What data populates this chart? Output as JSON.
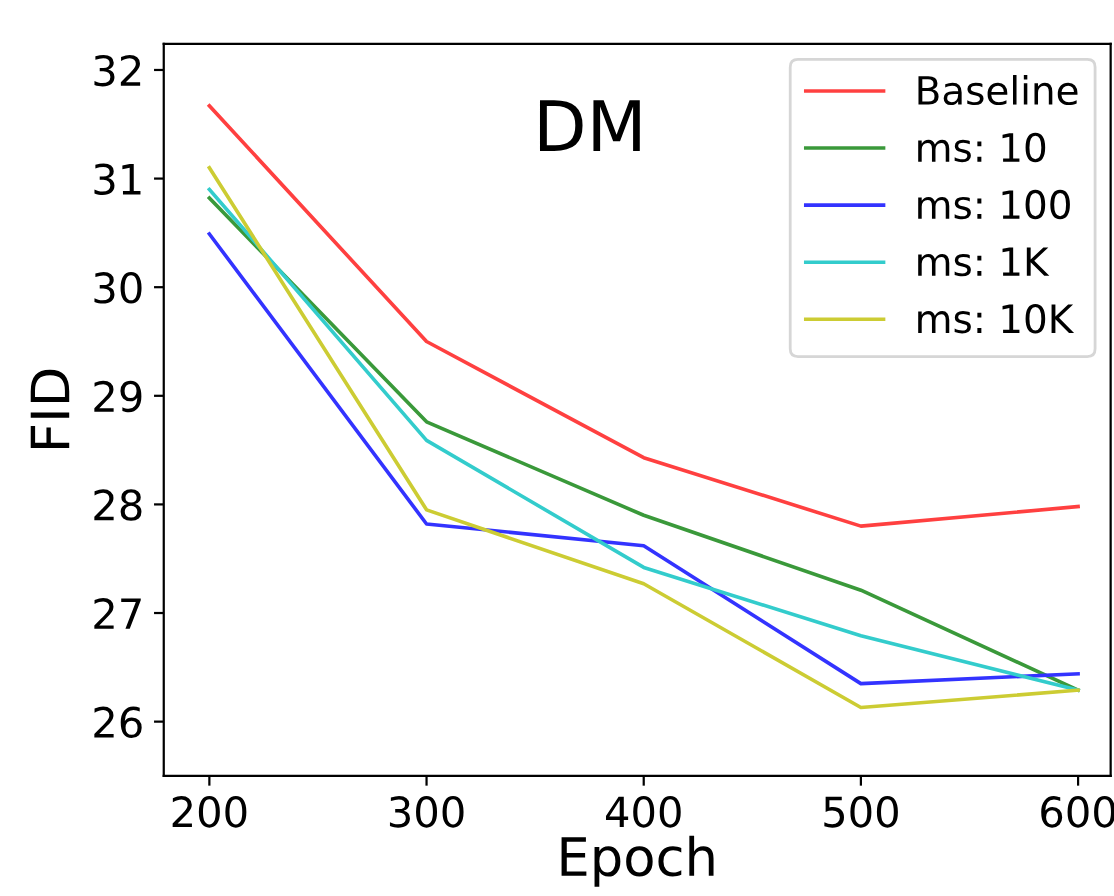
{
  "chart_data": {
    "type": "line",
    "title": "DM",
    "xlabel": "Epoch",
    "ylabel": "FID",
    "x": [
      200,
      300,
      400,
      500,
      600
    ],
    "series": [
      {
        "name": "Baseline",
        "color": "#ff4040",
        "values": [
          31.67,
          29.5,
          28.43,
          27.8,
          27.98
        ]
      },
      {
        "name": "ms: 10",
        "color": "#3a993a",
        "values": [
          30.82,
          28.76,
          27.9,
          27.21,
          26.29
        ]
      },
      {
        "name": "ms: 100",
        "color": "#3333ff",
        "values": [
          30.49,
          27.82,
          27.62,
          26.35,
          26.44
        ]
      },
      {
        "name": "ms: 1K",
        "color": "#33cccc",
        "values": [
          30.9,
          28.59,
          27.42,
          26.79,
          26.29
        ]
      },
      {
        "name": "ms: 10K",
        "color": "#cccc33",
        "values": [
          31.1,
          27.95,
          27.27,
          26.13,
          26.29
        ]
      }
    ],
    "xlim": [
      179,
      615
    ],
    "ylim": [
      25.5,
      32.24
    ],
    "xticks": [
      200,
      300,
      400,
      500,
      600
    ],
    "yticks": [
      26,
      27,
      28,
      29,
      30,
      31,
      32
    ],
    "grid": false,
    "legend": "top right",
    "marker": "none",
    "line_style": "solid"
  }
}
